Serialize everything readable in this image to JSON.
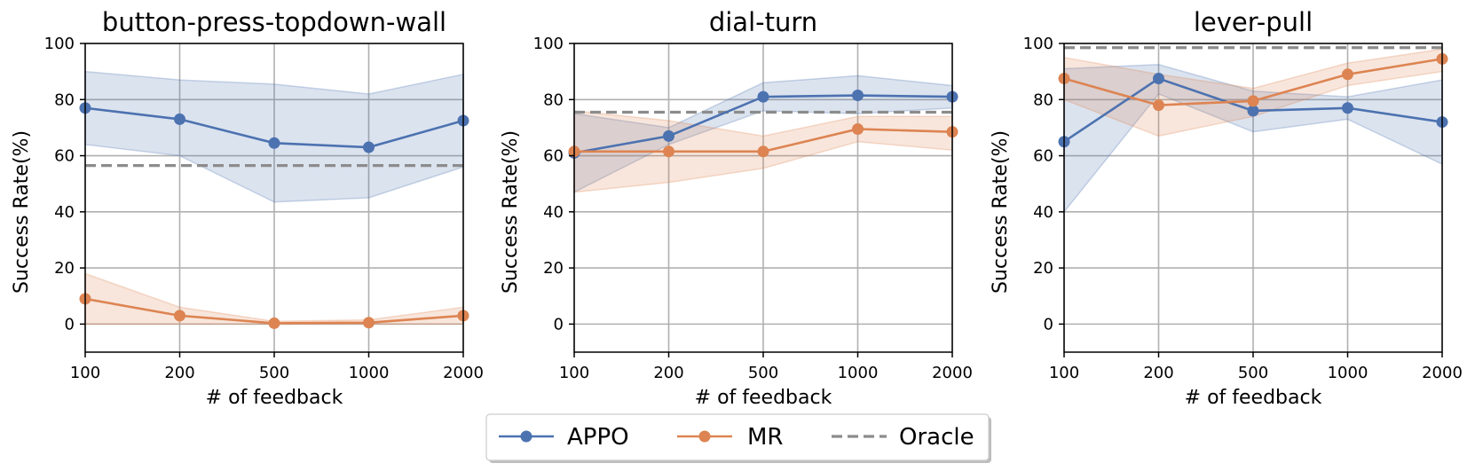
{
  "chart_data": [
    {
      "type": "line",
      "title": "button-press-topdown-wall",
      "xlabel": "# of feedback",
      "ylabel": "Success Rate(%)",
      "categories": [
        "100",
        "200",
        "500",
        "1000",
        "2000"
      ],
      "ylim": [
        -10,
        100
      ],
      "yticks": [
        0,
        20,
        40,
        60,
        80,
        100
      ],
      "grid": true,
      "series": [
        {
          "name": "APPO",
          "values": [
            77,
            73,
            64.5,
            63,
            72.5
          ],
          "upper": [
            90,
            87,
            85.5,
            82,
            89
          ],
          "lower": [
            64,
            60,
            43.5,
            45,
            56
          ]
        },
        {
          "name": "MR",
          "values": [
            9,
            3,
            0.3,
            0.5,
            3
          ],
          "upper": [
            18,
            6,
            1,
            1.5,
            6
          ],
          "lower": [
            0,
            0,
            0,
            0,
            0
          ]
        }
      ],
      "oracle": 56.5
    },
    {
      "type": "line",
      "title": "dial-turn",
      "xlabel": "# of feedback",
      "ylabel": "Success Rate(%)",
      "categories": [
        "100",
        "200",
        "500",
        "1000",
        "2000"
      ],
      "ylim": [
        -10,
        100
      ],
      "yticks": [
        0,
        20,
        40,
        60,
        80,
        100
      ],
      "grid": true,
      "series": [
        {
          "name": "APPO",
          "values": [
            61,
            67,
            81,
            81.5,
            81
          ],
          "upper": [
            75,
            70,
            86,
            88.5,
            85
          ],
          "lower": [
            47,
            64,
            76,
            75,
            77
          ]
        },
        {
          "name": "MR",
          "values": [
            61.5,
            61.5,
            61.5,
            69.5,
            68.5
          ],
          "upper": [
            76,
            72.5,
            67,
            74,
            74
          ],
          "lower": [
            47,
            50.5,
            55.5,
            65,
            62
          ]
        }
      ],
      "oracle": 75.5
    },
    {
      "type": "line",
      "title": "lever-pull",
      "xlabel": "# of feedback",
      "ylabel": "Success Rate(%)",
      "categories": [
        "100",
        "200",
        "500",
        "1000",
        "2000"
      ],
      "ylim": [
        -10,
        100
      ],
      "yticks": [
        0,
        20,
        40,
        60,
        80,
        100
      ],
      "grid": true,
      "series": [
        {
          "name": "APPO",
          "values": [
            65,
            87.5,
            76,
            77,
            72
          ],
          "upper": [
            91,
            92.5,
            83,
            81,
            87
          ],
          "lower": [
            40,
            82,
            68.5,
            73,
            57
          ]
        },
        {
          "name": "MR",
          "values": [
            87.5,
            78,
            79.5,
            89,
            94.5
          ],
          "upper": [
            95,
            89,
            84,
            93,
            98
          ],
          "lower": [
            80,
            67,
            74,
            85,
            90
          ]
        }
      ],
      "oracle": 98.5
    }
  ],
  "legend": {
    "position": "bottom-center",
    "entries": [
      {
        "label": "APPO",
        "style": "line-marker",
        "color": "#4c72b0"
      },
      {
        "label": "MR",
        "style": "line-marker",
        "color": "#dd8452"
      },
      {
        "label": "Oracle",
        "style": "dashed",
        "color": "#8c8c8c"
      }
    ]
  },
  "colors": {
    "APPO": "#4c72b0",
    "MR": "#dd8452",
    "Oracle": "#8c8c8c",
    "APPO_band": "#4c72b0",
    "MR_band": "#dd8452"
  }
}
